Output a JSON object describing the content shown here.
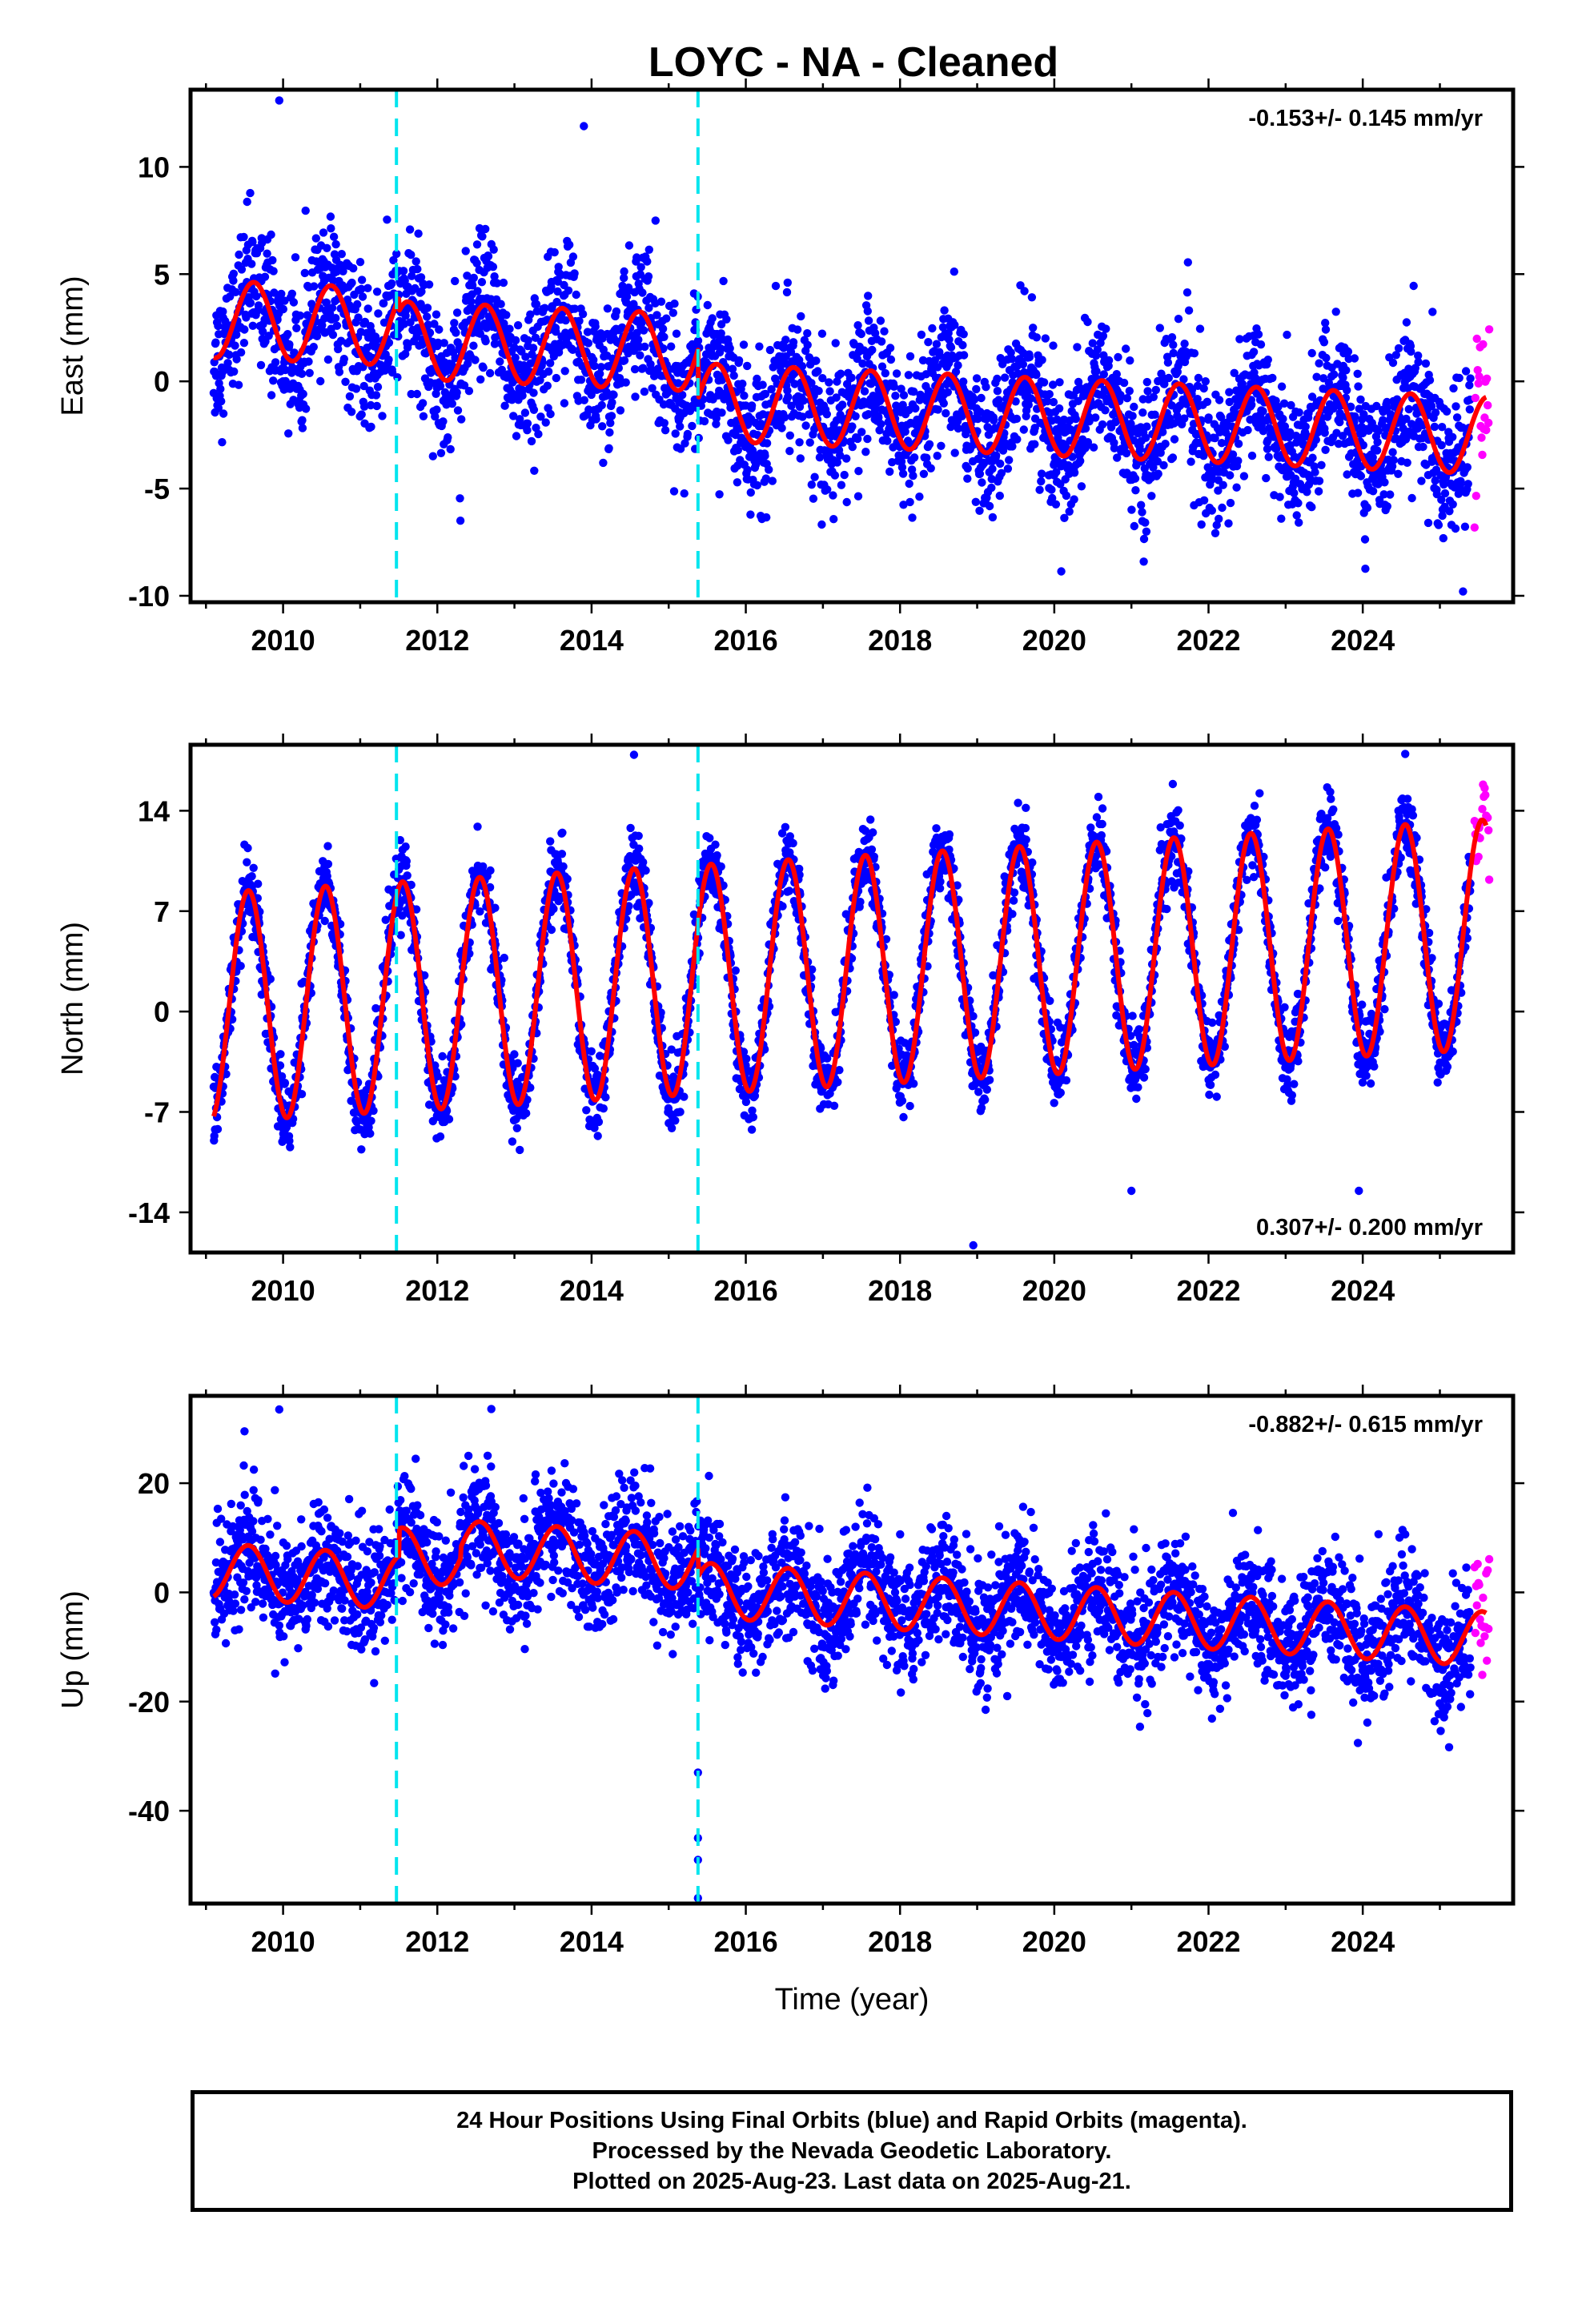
{
  "title": "LOYC  - NA - Cleaned",
  "footer": {
    "line1": "24 Hour Positions Using Final Orbits (blue) and Rapid Orbits (magenta).",
    "line2": "Processed by the Nevada Geodetic Laboratory.",
    "line3": "Plotted on 2025-Aug-23. Last data on 2025-Aug-21."
  },
  "colors": {
    "final_orbits": "#0000ff",
    "rapid_orbits": "#ff00ff",
    "model": "#ff0000",
    "events": "#00e5ee"
  },
  "chart_data": [
    {
      "type": "scatter",
      "component": "east",
      "ylabel": "East (mm)",
      "xlabel": "",
      "rate_label": "-0.153+/- 0.145 mm/yr",
      "rate_position": "top-right",
      "xlim": [
        2008.8,
        2025.95
      ],
      "ylim": [
        -10.3,
        13.6
      ],
      "xticks": [
        2010,
        2012,
        2014,
        2016,
        2018,
        2020,
        2022,
        2024
      ],
      "yticks": [
        -10,
        -5,
        0,
        5,
        10
      ],
      "events": [
        2011.47,
        2015.38
      ],
      "time_range": [
        2009.1,
        2025.4
      ],
      "rapid_range": [
        2025.45,
        2025.64
      ],
      "model": {
        "offset": 2.9,
        "trend": -0.153,
        "annual_amp": 1.8,
        "annual_peak": 0.62,
        "steps": [
          {
            "t": 2011.5,
            "dy": -0.6
          },
          {
            "t": 2015.38,
            "dy": -2.3
          }
        ]
      },
      "noise": 1.6,
      "outliers": [
        [
          2009.95,
          13.1
        ],
        [
          2013.9,
          11.9
        ],
        [
          2025.3,
          -9.8
        ],
        [
          2024.85,
          -6.6
        ],
        [
          2012.3,
          -6.5
        ]
      ]
    },
    {
      "type": "scatter",
      "component": "north",
      "ylabel": "North (mm)",
      "xlabel": "",
      "rate_label": "0.307+/- 0.200 mm/yr",
      "rate_position": "bottom-right",
      "xlim": [
        2008.8,
        2025.95
      ],
      "ylim": [
        -16.8,
        18.6
      ],
      "xticks": [
        2010,
        2012,
        2014,
        2016,
        2018,
        2020,
        2022,
        2024
      ],
      "yticks": [
        -14,
        -7,
        0,
        7,
        14
      ],
      "events": [
        2011.47,
        2015.38
      ],
      "time_range": [
        2009.1,
        2025.4
      ],
      "rapid_range": [
        2025.45,
        2025.64
      ],
      "model": {
        "offset": 0.3,
        "trend": 0.307,
        "annual_amp": 8.0,
        "annual_peak": 0.55,
        "steps": []
      },
      "noise": 1.3,
      "outliers": [
        [
          2014.55,
          17.9
        ],
        [
          2018.95,
          -16.3
        ],
        [
          2023.95,
          -12.5
        ],
        [
          2021.0,
          -12.5
        ]
      ]
    },
    {
      "type": "scatter",
      "component": "up",
      "ylabel": "Up (mm)",
      "xlabel": "Time (year)",
      "rate_label": "-0.882+/- 0.615 mm/yr",
      "rate_position": "top-right",
      "xlim": [
        2008.8,
        2025.95
      ],
      "ylim": [
        -57,
        36
      ],
      "xticks": [
        2010,
        2012,
        2014,
        2016,
        2018,
        2020,
        2022,
        2024
      ],
      "yticks": [
        -40,
        -20,
        0,
        20
      ],
      "events": [
        2011.47,
        2015.38
      ],
      "time_range": [
        2009.1,
        2025.4
      ],
      "rapid_range": [
        2025.45,
        2025.64
      ],
      "model": {
        "offset": 4.0,
        "trend": -0.882,
        "annual_amp": 5.0,
        "annual_peak": 0.55,
        "steps": [
          {
            "t": 2011.5,
            "dy": 5.0
          },
          {
            "t": 2012.3,
            "dy": 2.0
          },
          {
            "t": 2015.38,
            "dy": -5.0
          }
        ]
      },
      "noise": 5.5,
      "outliers": [
        [
          2015.38,
          -56
        ],
        [
          2015.38,
          -49
        ],
        [
          2015.38,
          -45
        ],
        [
          2015.38,
          -33
        ],
        [
          2009.95,
          33.5
        ],
        [
          2012.7,
          33.6
        ],
        [
          2009.5,
          29.5
        ]
      ]
    }
  ]
}
